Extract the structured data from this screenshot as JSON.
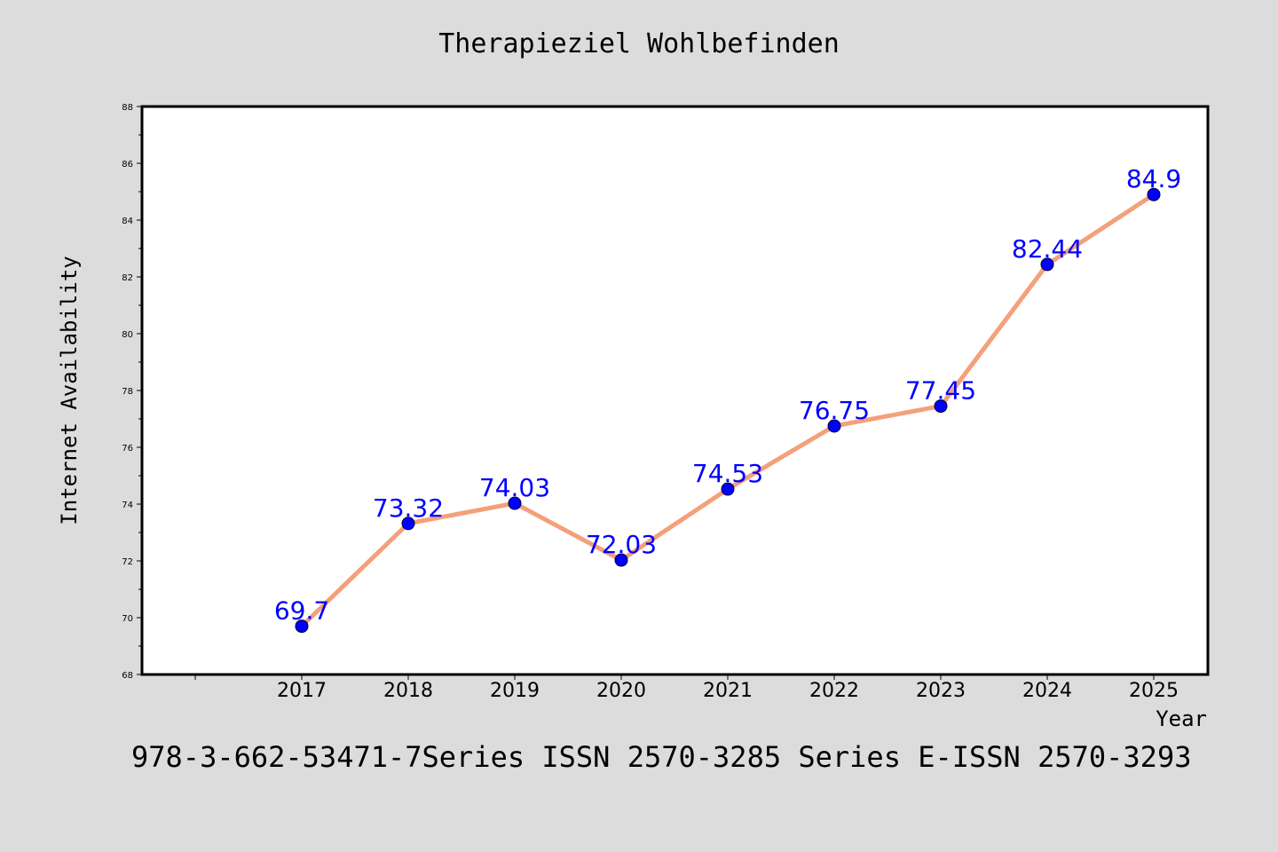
{
  "title": "Therapieziel Wohlbefinden",
  "footnote": "978-3-662-53471-7Series ISSN 2570-3285 Series E-ISSN 2570-3293",
  "colors": {
    "background": "#dcdcdc",
    "plot_background": "#ffffff",
    "line": "#f4a07a",
    "marker": "#0000ff",
    "data_label": "#0000ff"
  },
  "chart_data": {
    "type": "line",
    "xlabel": "Year",
    "ylabel": "Internet Availability",
    "categories": [
      "2017",
      "2018",
      "2019",
      "2020",
      "2021",
      "2022",
      "2023",
      "2024",
      "2025"
    ],
    "series": [
      {
        "values": [
          69.7,
          73.32,
          74.03,
          72.03,
          74.53,
          76.75,
          77.45,
          82.44,
          84.9
        ],
        "labels": [
          "69.7",
          "73.32",
          "74.03",
          "72.03",
          "74.53",
          "76.75",
          "77.45",
          "82.44",
          "84.9"
        ]
      }
    ],
    "ylim": [
      68,
      88
    ],
    "yticks": [
      68,
      70,
      72,
      74,
      76,
      78,
      80,
      82,
      84,
      86,
      88
    ],
    "grid": false,
    "legend": "none"
  }
}
